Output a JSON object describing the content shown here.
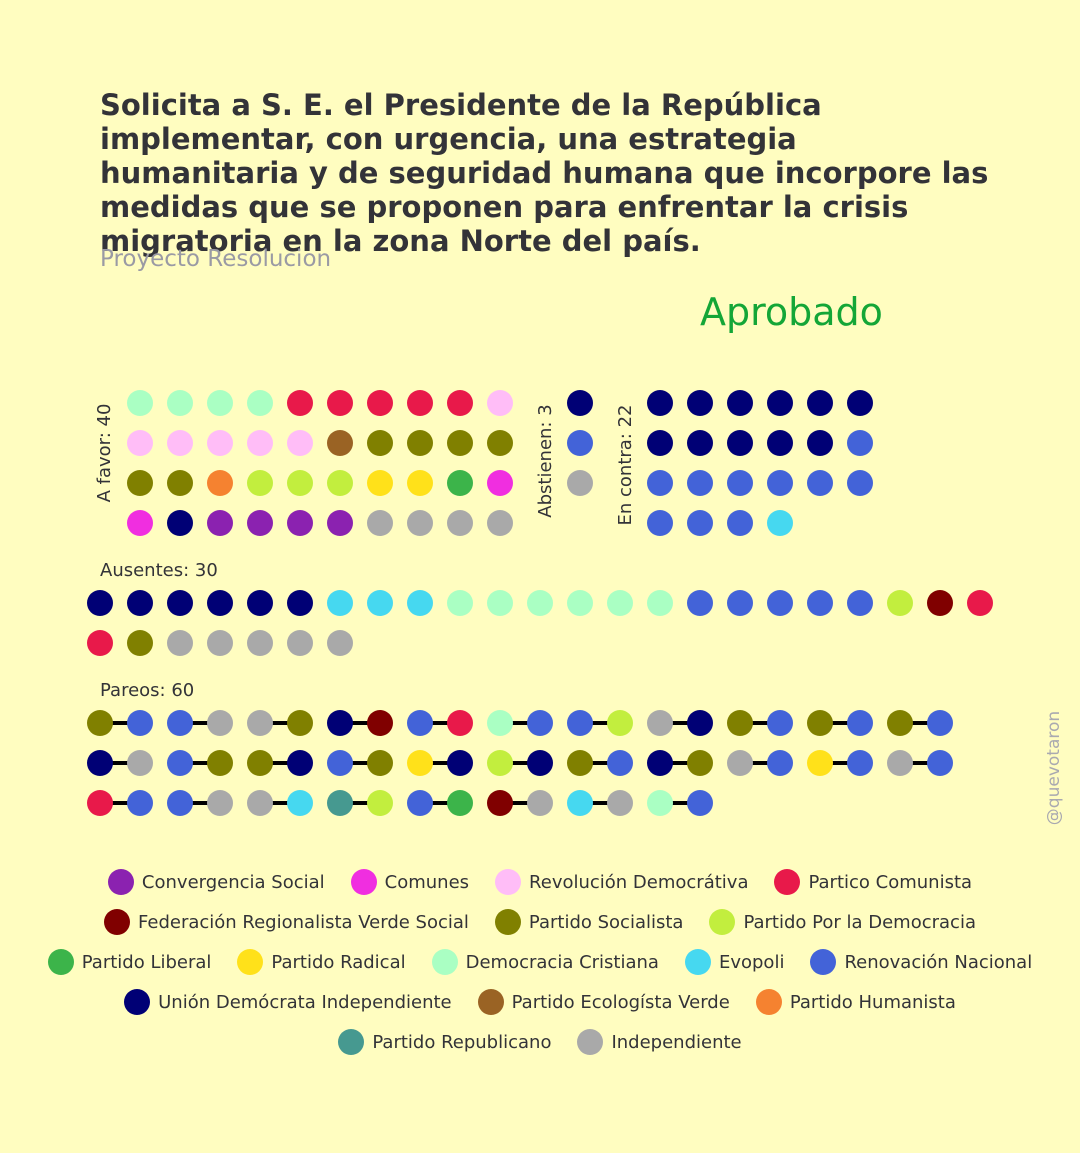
{
  "header": {
    "title": "Solicita a S. E. el Presidente de la República implementar, con urgencia, una estrategia humanitaria y de seguridad humana que incorpore las medidas que se proponen para enfrentar la crisis migratoria en la zona Norte del país.",
    "subtitle": "Proyecto Resolucion",
    "result": "Aprobado",
    "result_color": "#14A637"
  },
  "watermark": "@quevotaron",
  "parties": [
    {
      "key": "CS",
      "name": "Convergencia Social",
      "color": "#8B22B0"
    },
    {
      "key": "COM",
      "name": "Comunes",
      "color": "#F02EE0"
    },
    {
      "key": "RD",
      "name": "Revolución Democrátiva",
      "color": "#FFBDF7"
    },
    {
      "key": "PC",
      "name": "Partico Comunista",
      "color": "#E8194A"
    },
    {
      "key": "FRVS",
      "name": "Federación Regionalista Verde Social",
      "color": "#800000"
    },
    {
      "key": "PS",
      "name": "Partido Socialista",
      "color": "#808000"
    },
    {
      "key": "PPD",
      "name": "Partido Por la Democracia",
      "color": "#C2EE3E"
    },
    {
      "key": "PL",
      "name": "Partido Liberal",
      "color": "#3CB44A"
    },
    {
      "key": "PR",
      "name": "Partido Radical",
      "color": "#FFE11A"
    },
    {
      "key": "DC",
      "name": "Democracia Cristiana",
      "color": "#AAFFC3"
    },
    {
      "key": "EVO",
      "name": "Evopoli",
      "color": "#46D8F0"
    },
    {
      "key": "RN",
      "name": "Renovación Nacional",
      "color": "#4363D8"
    },
    {
      "key": "UDI",
      "name": "Unión Demócrata Independiente",
      "color": "#000075"
    },
    {
      "key": "PEV",
      "name": "Partido Ecologísta Verde",
      "color": "#9A6324"
    },
    {
      "key": "PH",
      "name": "Partido Humanista",
      "color": "#F58230"
    },
    {
      "key": "REP",
      "name": "Partido Republicano",
      "color": "#469990"
    },
    {
      "key": "IND",
      "name": "Independiente",
      "color": "#A9A9A9"
    }
  ],
  "legend_rows": [
    [
      "CS",
      "COM",
      "RD",
      "PC"
    ],
    [
      "FRVS",
      "PS",
      "PPD"
    ],
    [
      "PL",
      "PR",
      "DC",
      "EVO",
      "RN"
    ],
    [
      "UDI",
      "PEV",
      "PH"
    ],
    [
      "REP",
      "IND"
    ]
  ],
  "chart_data": {
    "type": "dot-plot",
    "groups": [
      {
        "label": "A favor: 40",
        "count": 40,
        "members": [
          [
            "DC",
            "DC",
            "DC",
            "DC",
            "PC",
            "PC",
            "PC",
            "PC",
            "PC",
            "RD"
          ],
          [
            "RD",
            "RD",
            "RD",
            "RD",
            "RD",
            "PEV",
            "PS",
            "PS",
            "PS",
            "PS"
          ],
          [
            "PS",
            "PS",
            "PH",
            "PPD",
            "PPD",
            "PPD",
            "PR",
            "PR",
            "PL",
            "COM"
          ],
          [
            "COM",
            "UDI",
            "CS",
            "CS",
            "CS",
            "CS",
            "IND",
            "IND",
            "IND",
            "IND"
          ]
        ]
      },
      {
        "label": "Abstienen: 3",
        "count": 3,
        "members": [
          [
            "UDI"
          ],
          [
            "RN"
          ],
          [
            "IND"
          ]
        ]
      },
      {
        "label": "En contra: 22",
        "count": 22,
        "members": [
          [
            "UDI",
            "UDI",
            "UDI",
            "UDI",
            "UDI",
            "UDI"
          ],
          [
            "UDI",
            "UDI",
            "UDI",
            "UDI",
            "UDI",
            "RN"
          ],
          [
            "RN",
            "RN",
            "RN",
            "RN",
            "RN",
            "RN"
          ],
          [
            "RN",
            "RN",
            "RN",
            "EVO"
          ]
        ]
      },
      {
        "label": "Ausentes: 30",
        "count": 30,
        "members": [
          [
            "UDI",
            "UDI",
            "UDI",
            "UDI",
            "UDI",
            "UDI",
            "EVO",
            "EVO",
            "EVO",
            "DC",
            "DC",
            "DC",
            "DC",
            "DC",
            "DC",
            "RN",
            "RN",
            "RN",
            "RN",
            "RN",
            "PPD",
            "FRVS",
            "PC"
          ],
          [
            "PC",
            "PS",
            "IND",
            "IND",
            "IND",
            "IND",
            "IND"
          ]
        ]
      },
      {
        "label": "Pareos: 60",
        "count": 60,
        "pairs": [
          [
            [
              "PS",
              "RN"
            ],
            [
              "RN",
              "IND"
            ],
            [
              "IND",
              "PS"
            ],
            [
              "UDI",
              "FRVS"
            ],
            [
              "RN",
              "PC"
            ],
            [
              "DC",
              "RN"
            ],
            [
              "RN",
              "PPD"
            ],
            [
              "IND",
              "UDI"
            ],
            [
              "PS",
              "RN"
            ],
            [
              "PS",
              "RN"
            ],
            [
              "PS",
              "RN"
            ]
          ],
          [
            [
              "UDI",
              "IND"
            ],
            [
              "RN",
              "PS"
            ],
            [
              "PS",
              "UDI"
            ],
            [
              "RN",
              "PS"
            ],
            [
              "PR",
              "UDI"
            ],
            [
              "PPD",
              "UDI"
            ],
            [
              "PS",
              "RN"
            ],
            [
              "UDI",
              "PS"
            ],
            [
              "IND",
              "RN"
            ],
            [
              "PR",
              "RN"
            ],
            [
              "IND",
              "RN"
            ]
          ],
          [
            [
              "PC",
              "RN"
            ],
            [
              "RN",
              "IND"
            ],
            [
              "IND",
              "EVO"
            ],
            [
              "REP",
              "PPD"
            ],
            [
              "RN",
              "PL"
            ],
            [
              "FRVS",
              "IND"
            ],
            [
              "EVO",
              "IND"
            ],
            [
              "DC",
              "RN"
            ]
          ]
        ]
      }
    ]
  }
}
